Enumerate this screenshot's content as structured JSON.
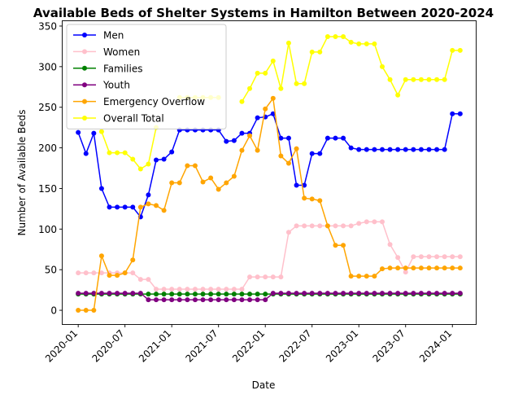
{
  "chart_data": {
    "type": "line",
    "title": "Available Beds of Shelter Systems in Hamilton Between 2020-2024",
    "xlabel": "Date",
    "ylabel": "Number of Available Beds",
    "x_ticks": [
      "2020-01",
      "2020-07",
      "2021-01",
      "2021-07",
      "2022-01",
      "2022-07",
      "2023-01",
      "2023-07",
      "2024-01"
    ],
    "y_ticks": [
      0,
      50,
      100,
      150,
      200,
      250,
      300,
      350
    ],
    "xlim": [
      "2019-11-01",
      "2024-04-01"
    ],
    "ylim": [
      -17,
      356
    ],
    "grid": false,
    "legend_position": "top-left",
    "months": [
      "2020-01",
      "2020-02",
      "2020-03",
      "2020-04",
      "2020-05",
      "2020-06",
      "2020-07",
      "2020-08",
      "2020-09",
      "2020-10",
      "2020-11",
      "2020-12",
      "2021-01",
      "2021-02",
      "2021-03",
      "2021-04",
      "2021-05",
      "2021-06",
      "2021-07",
      "2021-08",
      "2021-09",
      "2021-10",
      "2021-11",
      "2021-12",
      "2022-01",
      "2022-02",
      "2022-03",
      "2022-04",
      "2022-05",
      "2022-06",
      "2022-07",
      "2022-08",
      "2022-09",
      "2022-10",
      "2022-11",
      "2022-12",
      "2023-01",
      "2023-02",
      "2023-03",
      "2023-04",
      "2023-05",
      "2023-06",
      "2023-07",
      "2023-08",
      "2023-09",
      "2023-10",
      "2023-11",
      "2023-12",
      "2024-01",
      "2024-02"
    ],
    "series": [
      {
        "name": "Men",
        "color": "#0000ff",
        "values": [
          219,
          193,
          218,
          150,
          127,
          127,
          127,
          127,
          115,
          142,
          185,
          186,
          195,
          222,
          222,
          222,
          222,
          222,
          222,
          208,
          209,
          218,
          218,
          237,
          238,
          242,
          212,
          212,
          154,
          154,
          193,
          193,
          212,
          212,
          212,
          200,
          198,
          198,
          198,
          198,
          198,
          198,
          198,
          198,
          198,
          198,
          198,
          198,
          242,
          242
        ]
      },
      {
        "name": "Women",
        "color": "#ffc0cb",
        "values": [
          46,
          46,
          46,
          46,
          46,
          46,
          46,
          46,
          38,
          38,
          26,
          26,
          26,
          26,
          26,
          26,
          26,
          26,
          26,
          26,
          26,
          26,
          41,
          41,
          41,
          41,
          41,
          96,
          104,
          104,
          104,
          104,
          104,
          104,
          104,
          104,
          107,
          109,
          109,
          109,
          81,
          65,
          47,
          66,
          66,
          66,
          66,
          66,
          66,
          66
        ]
      },
      {
        "name": "Families",
        "color": "#008000",
        "values": [
          20,
          20,
          20,
          20,
          20,
          20,
          20,
          20,
          20,
          20,
          20,
          20,
          20,
          20,
          20,
          20,
          20,
          20,
          20,
          20,
          20,
          20,
          20,
          20,
          20,
          20,
          20,
          20,
          20,
          20,
          20,
          20,
          20,
          20,
          20,
          20,
          20,
          20,
          20,
          20,
          20,
          20,
          20,
          20,
          20,
          20,
          20,
          20,
          20,
          20
        ]
      },
      {
        "name": "Youth",
        "color": "#800080",
        "values": [
          21,
          21,
          21,
          21,
          21,
          21,
          21,
          21,
          21,
          13,
          13,
          13,
          13,
          13,
          13,
          13,
          13,
          13,
          13,
          13,
          13,
          13,
          13,
          13,
          13,
          21,
          21,
          21,
          21,
          21,
          21,
          21,
          21,
          21,
          21,
          21,
          21,
          21,
          21,
          21,
          21,
          21,
          21,
          21,
          21,
          21,
          21,
          21,
          21,
          21
        ]
      },
      {
        "name": "Emergency Overflow",
        "color": "#ffa500",
        "values": [
          0,
          0,
          0,
          67,
          43,
          43,
          46,
          62,
          127,
          131,
          129,
          123,
          157,
          157,
          178,
          178,
          158,
          163,
          149,
          157,
          165,
          197,
          215,
          197,
          248,
          261,
          190,
          181,
          199,
          138,
          137,
          135,
          104,
          80,
          80,
          42,
          42,
          42,
          42,
          51,
          52,
          52,
          52,
          52,
          52,
          52,
          52,
          52,
          52,
          52
        ]
      },
      {
        "name": "Overall Total",
        "color": "#ffff00",
        "values": [
          null,
          null,
          null,
          220,
          194,
          194,
          194,
          186,
          174,
          180,
          225,
          null,
          null,
          262,
          262,
          262,
          262,
          262,
          262,
          null,
          null,
          257,
          273,
          292,
          292,
          307,
          273,
          329,
          279,
          279,
          318,
          318,
          337,
          337,
          337,
          330,
          328,
          328,
          328,
          300,
          284,
          265,
          284,
          284,
          284,
          284,
          284,
          284,
          320,
          320
        ]
      }
    ]
  }
}
